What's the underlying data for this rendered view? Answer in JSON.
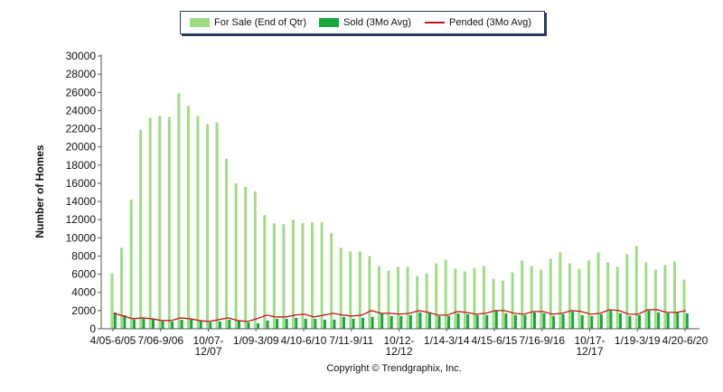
{
  "legend": {
    "for_sale": "For Sale (End of Qtr)",
    "sold": "Sold (3Mo Avg)",
    "pended": "Pended (3Mo Avg)"
  },
  "copyright": "Copyright © Trendgraphix, Inc.",
  "colors": {
    "for_sale": "#9fdc86",
    "sold": "#18a83c",
    "pended": "#c31414",
    "axis": "#555555"
  },
  "chart_data": {
    "type": "bar",
    "ylabel": "Number of Homes",
    "ylim": [
      0,
      30000
    ],
    "yticks": [
      0,
      2000,
      4000,
      6000,
      8000,
      10000,
      12000,
      14000,
      16000,
      18000,
      20000,
      22000,
      24000,
      26000,
      28000,
      30000
    ],
    "x_tick_labels": [
      {
        "lines": [
          "4/05-6/05"
        ],
        "index": 0
      },
      {
        "lines": [
          "7/06-9/06"
        ],
        "index": 5
      },
      {
        "lines": [
          "10/07-",
          "12/07"
        ],
        "index": 10
      },
      {
        "lines": [
          "1/09-3/09"
        ],
        "index": 15
      },
      {
        "lines": [
          "4/10-6/10"
        ],
        "index": 20
      },
      {
        "lines": [
          "7/11-9/11"
        ],
        "index": 25
      },
      {
        "lines": [
          "10/12-",
          "12/12"
        ],
        "index": 30
      },
      {
        "lines": [
          "1/14-3/14"
        ],
        "index": 35
      },
      {
        "lines": [
          "4/15-6/15"
        ],
        "index": 40
      },
      {
        "lines": [
          "7/16-9/16"
        ],
        "index": 45
      },
      {
        "lines": [
          "10/17-",
          "12/17"
        ],
        "index": 50
      },
      {
        "lines": [
          "1/19-3/19"
        ],
        "index": 55
      },
      {
        "lines": [
          "4/20-6/20"
        ],
        "index": 60
      }
    ],
    "series": [
      {
        "name": "For Sale (End of Qtr)",
        "values": [
          6100,
          8900,
          14200,
          21900,
          23200,
          23400,
          23300,
          25900,
          24500,
          23400,
          22500,
          22700,
          18700,
          16000,
          15600,
          15100,
          12500,
          11600,
          11500,
          12000,
          11600,
          11700,
          11700,
          10500,
          8900,
          8500,
          8500,
          8000,
          6900,
          6400,
          6800,
          6800,
          5800,
          6100,
          7200,
          7600,
          6600,
          6300,
          6700,
          6900,
          5500,
          5300,
          6200,
          7500,
          6900,
          6500,
          7700,
          8400,
          7200,
          6600,
          7500,
          8400,
          7300,
          6800,
          8200,
          9100,
          7300,
          6500,
          7000,
          7400,
          5400
        ]
      },
      {
        "name": "Sold (3Mo Avg)",
        "values": [
          1800,
          1500,
          1000,
          1100,
          1100,
          900,
          800,
          1000,
          1000,
          900,
          700,
          800,
          1000,
          900,
          700,
          600,
          900,
          1100,
          1100,
          1200,
          1100,
          1100,
          1000,
          1000,
          1300,
          1100,
          1200,
          1300,
          1700,
          1400,
          1400,
          1500,
          1800,
          1700,
          1400,
          1400,
          1700,
          1600,
          1500,
          1500,
          2000,
          1700,
          1500,
          1500,
          1800,
          1700,
          1400,
          1600,
          1900,
          1500,
          1400,
          1600,
          2000,
          1700,
          1400,
          1500,
          2000,
          1800,
          1700,
          1800,
          1700
        ]
      },
      {
        "name": "Pended (3Mo Avg)",
        "values": [
          1700,
          1400,
          1100,
          1200,
          1100,
          900,
          900,
          1200,
          1100,
          900,
          800,
          1000,
          1200,
          900,
          800,
          1100,
          1500,
          1300,
          1300,
          1500,
          1600,
          1300,
          1500,
          1700,
          1500,
          1400,
          1500,
          2000,
          1700,
          1700,
          1600,
          1700,
          2000,
          1800,
          1500,
          1500,
          1900,
          1800,
          1600,
          1700,
          2000,
          2000,
          1700,
          1600,
          1900,
          1900,
          1600,
          1700,
          2000,
          1900,
          1600,
          1700,
          2100,
          2000,
          1600,
          1600,
          2100,
          2100,
          1800,
          1800,
          2000
        ]
      }
    ]
  }
}
